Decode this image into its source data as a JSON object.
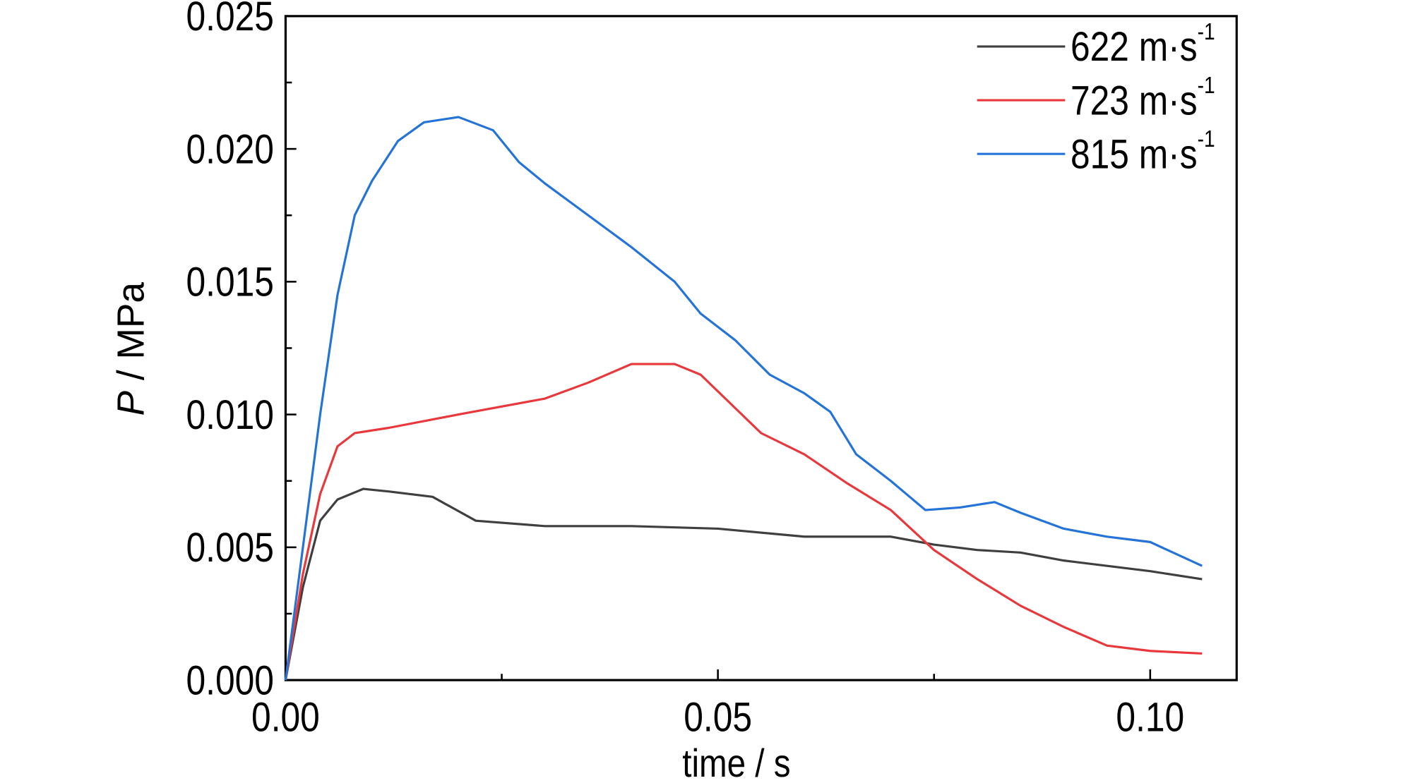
{
  "chart_data": {
    "type": "line",
    "title": "",
    "xlabel": "time / s",
    "ylabel_italic": "P",
    "ylabel_rest": " / MPa",
    "xlim": [
      0,
      0.11
    ],
    "ylim": [
      0,
      0.025
    ],
    "xticks": [
      0.0,
      0.05,
      0.1
    ],
    "xtick_labels": [
      "0.00",
      "0.05",
      "0.10"
    ],
    "xminor": [
      0.025,
      0.075
    ],
    "yticks": [
      0,
      0.005,
      0.01,
      0.015,
      0.02,
      0.025
    ],
    "ytick_labels": [
      "0.000",
      "0.005",
      "0.010",
      "0.015",
      "0.020",
      "0.025"
    ],
    "yminor": [
      0.0025,
      0.0075,
      0.0125,
      0.0175,
      0.0225
    ],
    "grid": false,
    "legend_position": "top-right",
    "series": [
      {
        "name": "622 m·s",
        "sup": "-1",
        "color": "#3f3f3f",
        "x": [
          0,
          0.002,
          0.004,
          0.006,
          0.009,
          0.012,
          0.017,
          0.022,
          0.03,
          0.04,
          0.05,
          0.06,
          0.07,
          0.075,
          0.08,
          0.085,
          0.09,
          0.1,
          0.106
        ],
        "y": [
          0,
          0.0035,
          0.006,
          0.0068,
          0.0072,
          0.0071,
          0.0069,
          0.006,
          0.0058,
          0.0058,
          0.0057,
          0.0054,
          0.0054,
          0.0051,
          0.0049,
          0.0048,
          0.0045,
          0.0041,
          0.0038
        ]
      },
      {
        "name": "723 m·s",
        "sup": "-1",
        "color": "#e8383b",
        "x": [
          0,
          0.002,
          0.004,
          0.006,
          0.008,
          0.012,
          0.02,
          0.03,
          0.035,
          0.04,
          0.045,
          0.048,
          0.055,
          0.06,
          0.065,
          0.07,
          0.075,
          0.08,
          0.085,
          0.09,
          0.095,
          0.1,
          0.106
        ],
        "y": [
          0,
          0.004,
          0.007,
          0.0088,
          0.0093,
          0.0095,
          0.01,
          0.0106,
          0.0112,
          0.0119,
          0.0119,
          0.0115,
          0.0093,
          0.0085,
          0.0074,
          0.0064,
          0.0049,
          0.0038,
          0.0028,
          0.002,
          0.0013,
          0.0011,
          0.001
        ]
      },
      {
        "name": "815 m·s",
        "sup": "-1",
        "color": "#2373d9",
        "x": [
          0,
          0.002,
          0.004,
          0.006,
          0.008,
          0.01,
          0.013,
          0.016,
          0.02,
          0.024,
          0.027,
          0.03,
          0.035,
          0.04,
          0.045,
          0.048,
          0.052,
          0.056,
          0.06,
          0.063,
          0.066,
          0.07,
          0.074,
          0.078,
          0.082,
          0.085,
          0.09,
          0.095,
          0.1,
          0.106
        ],
        "y": [
          0,
          0.005,
          0.01,
          0.0145,
          0.0175,
          0.0188,
          0.0203,
          0.021,
          0.0212,
          0.0207,
          0.0195,
          0.0187,
          0.0175,
          0.0163,
          0.015,
          0.0138,
          0.0128,
          0.0115,
          0.0108,
          0.0101,
          0.0085,
          0.0075,
          0.0064,
          0.0065,
          0.0067,
          0.0063,
          0.0057,
          0.0054,
          0.0052,
          0.0043
        ]
      }
    ]
  }
}
